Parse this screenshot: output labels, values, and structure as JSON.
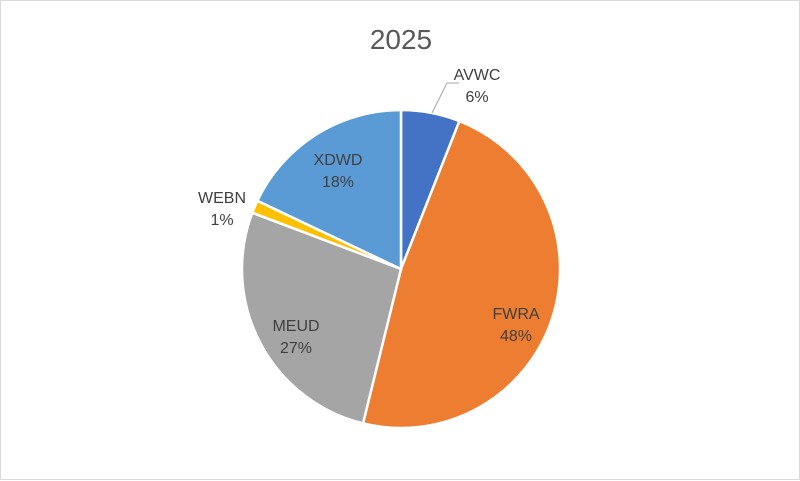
{
  "chart_data": {
    "type": "pie",
    "title": "2025",
    "slices": [
      {
        "label": "AVWC",
        "percent_label": "6%",
        "value": 6,
        "color": "#4472C4"
      },
      {
        "label": "FWRA",
        "percent_label": "48%",
        "value": 48,
        "color": "#ED7D31"
      },
      {
        "label": "MEUD",
        "percent_label": "27%",
        "value": 27,
        "color": "#A5A5A5"
      },
      {
        "label": "WEBN",
        "percent_label": "1%",
        "value": 1.3,
        "color": "#FFC000"
      },
      {
        "label": "XDWD",
        "percent_label": "18%",
        "value": 18,
        "color": "#5B9BD5"
      }
    ],
    "legend": "none",
    "grid": false
  }
}
